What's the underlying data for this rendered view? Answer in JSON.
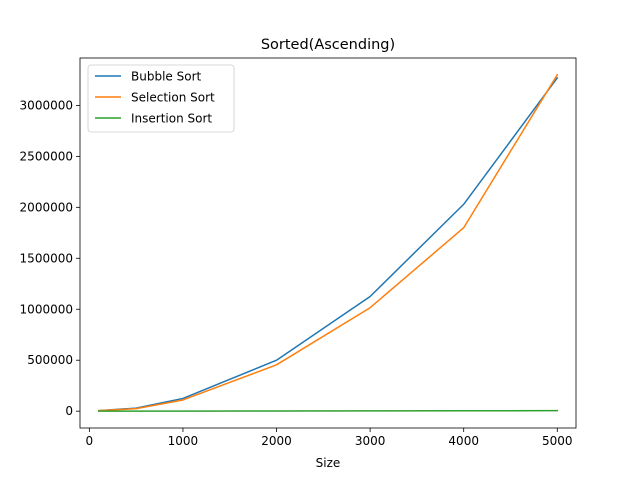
{
  "chart_data": {
    "type": "line",
    "title": "Sorted(Ascending)",
    "xlabel": "Size",
    "ylabel": "",
    "xlim": [
      -100,
      5200
    ],
    "ylim": [
      -165000,
      3465000
    ],
    "x_ticks": [
      0,
      1000,
      2000,
      3000,
      4000,
      5000
    ],
    "x_tick_labels": [
      "0",
      "1000",
      "2000",
      "3000",
      "4000",
      "5000"
    ],
    "y_ticks": [
      0,
      500000,
      1000000,
      1500000,
      2000000,
      2500000,
      3000000
    ],
    "y_tick_labels": [
      "0",
      "500000",
      "1000000",
      "1500000",
      "2000000",
      "2500000",
      "3000000"
    ],
    "grid": false,
    "legend_position": "top-left",
    "x": [
      100,
      500,
      1000,
      2000,
      3000,
      4000,
      5000
    ],
    "series": [
      {
        "name": "Bubble Sort",
        "color": "#1f77b4",
        "values": [
          5000,
          30000,
          125000,
          500000,
          1125000,
          2030000,
          3270000
        ]
      },
      {
        "name": "Selection Sort",
        "color": "#ff7f0e",
        "values": [
          5000,
          25000,
          110000,
          455000,
          1015000,
          1800000,
          3300000
        ]
      },
      {
        "name": "Insertion Sort",
        "color": "#2ca02c",
        "values": [
          100,
          500,
          1000,
          2000,
          3000,
          4000,
          5000
        ]
      }
    ]
  }
}
